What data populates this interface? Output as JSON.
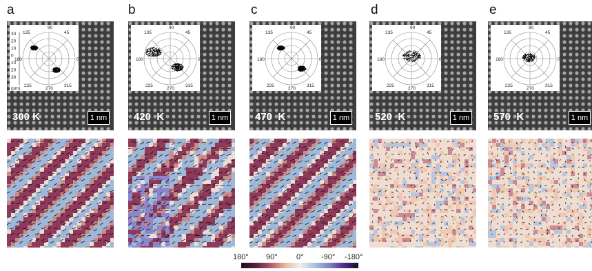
{
  "panels": [
    {
      "letter": "a",
      "temperature": "300 K",
      "scale": "1 nm",
      "phase": "ordered",
      "polar_axis_show": true
    },
    {
      "letter": "b",
      "temperature": "420  K",
      "scale": "1 nm",
      "phase": "ordered"
    },
    {
      "letter": "c",
      "temperature": "470  K",
      "scale": "1 nm",
      "phase": "ordered"
    },
    {
      "letter": "d",
      "temperature": "520  K",
      "scale": "1 nm",
      "phase": "disordered"
    },
    {
      "letter": "e",
      "temperature": "570  K",
      "scale": "1 nm",
      "phase": "disordered"
    }
  ],
  "polar": {
    "angles": [
      "90",
      "45",
      "0",
      "315",
      "270",
      "225",
      "180",
      "135"
    ],
    "radial_ticks": [
      "30",
      "20",
      "10",
      "0",
      "10",
      "20",
      "30"
    ],
    "unit": "(pm)"
  },
  "colorbar": {
    "labels": [
      "180°",
      "90°",
      "0°",
      "-90°",
      "-180°"
    ],
    "colors": [
      "#1b0c2a",
      "#5a1f3d",
      "#b0566a",
      "#e7b9a1",
      "#f3efee",
      "#a9c3dd",
      "#7e85c5",
      "#4a2f8a",
      "#1b0c2a"
    ]
  }
}
